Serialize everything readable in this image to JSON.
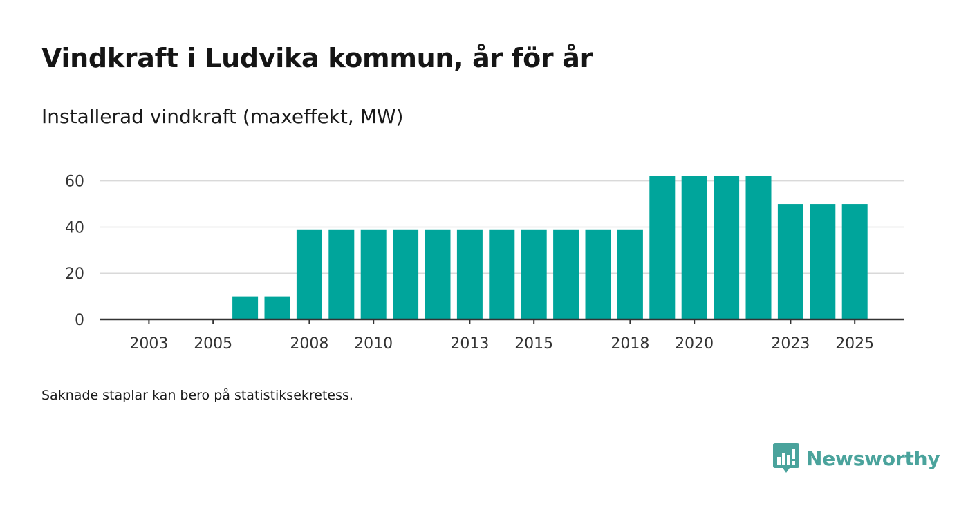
{
  "chart_data": {
    "type": "bar",
    "title": "Vindkraft i Ludvika kommun, år för år",
    "subtitle": "Installerad vindkraft (maxeffekt, MW)",
    "categories": [
      2002,
      2003,
      2004,
      2005,
      2006,
      2007,
      2008,
      2009,
      2010,
      2011,
      2012,
      2013,
      2014,
      2015,
      2016,
      2017,
      2018,
      2019,
      2020,
      2021,
      2022,
      2023,
      2024,
      2025
    ],
    "values": [
      0,
      0,
      0,
      0,
      10,
      10,
      39,
      39,
      39,
      39,
      39,
      39,
      39,
      39,
      39,
      39,
      39,
      62,
      62,
      62,
      62,
      50,
      50,
      50
    ],
    "x_tick_labels": [
      "2003",
      "2005",
      "2008",
      "2010",
      "2013",
      "2015",
      "2018",
      "2020",
      "2023",
      "2025"
    ],
    "y_ticks": [
      0,
      20,
      40,
      60
    ],
    "ylim": [
      0,
      62
    ],
    "xlabel": "",
    "ylabel": "",
    "grid": true,
    "legend": "none",
    "bar_color": "#00a59b"
  },
  "footnote": "Saknade staplar kan bero på statistiksekretess.",
  "brand": {
    "name": "Newsworthy",
    "icon": "newsworthy-logo-icon",
    "color": "#4aa39c"
  }
}
